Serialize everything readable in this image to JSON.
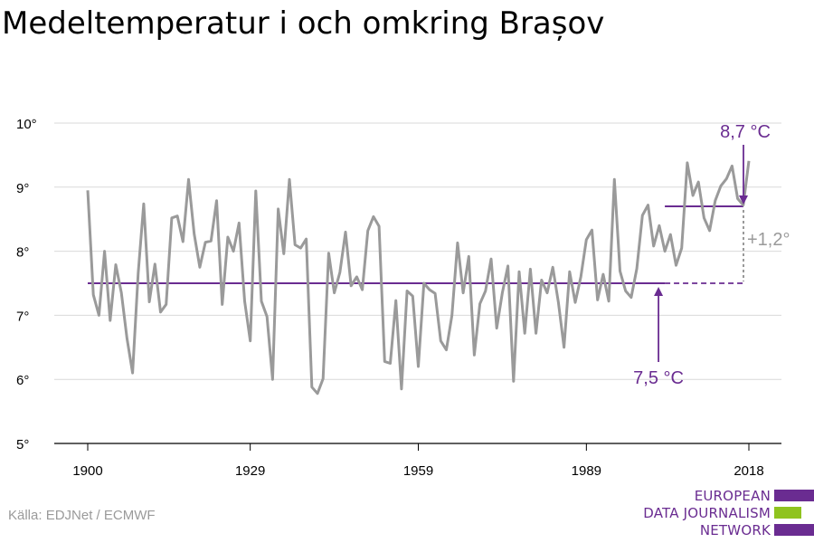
{
  "title": "Medeltemperatur i och omkring Brașov",
  "source": "Källa: EDJNet / ECMWF",
  "logo": {
    "lines": [
      "EUROPEAN",
      "DATA JOURNALISM",
      "NETWORK"
    ],
    "colors": [
      "#6a2c91",
      "#8fc31f",
      "#6a2c91"
    ]
  },
  "colors": {
    "series": "#9a9a9a",
    "accent": "#6a2c91",
    "grid": "#d9d9d9",
    "diff": "#9a9a9a"
  },
  "chart_data": {
    "type": "line",
    "title": "Medeltemperatur i och omkring Brașov",
    "xlabel": "",
    "ylabel": "",
    "xlim": [
      1900,
      2018
    ],
    "ylim": [
      5,
      10
    ],
    "x_ticks": [
      1900,
      1929,
      1959,
      1989,
      2018
    ],
    "y_ticks": [
      5,
      6,
      7,
      8,
      9,
      10
    ],
    "y_tick_labels": [
      "5°",
      "6°",
      "7°",
      "8°",
      "9°",
      "10°"
    ],
    "grid": true,
    "series": [
      {
        "x": [
          1900,
          1901,
          1902,
          1903,
          1904,
          1905,
          1906,
          1907,
          1908,
          1909,
          1910,
          1911,
          1912,
          1913,
          1914,
          1915,
          1916,
          1917,
          1918,
          1919,
          1920,
          1921,
          1922,
          1923,
          1924,
          1925,
          1926,
          1927,
          1928,
          1929,
          1930,
          1931,
          1932,
          1933,
          1934,
          1935,
          1936,
          1937,
          1938,
          1939,
          1940,
          1941,
          1942,
          1943,
          1944,
          1945,
          1946,
          1947,
          1948,
          1949,
          1950,
          1951,
          1952,
          1953,
          1954,
          1955,
          1956,
          1957,
          1958,
          1959,
          1960,
          1961,
          1962,
          1963,
          1964,
          1965,
          1966,
          1967,
          1968,
          1969,
          1970,
          1971,
          1972,
          1973,
          1974,
          1975,
          1976,
          1977,
          1978,
          1979,
          1980,
          1981,
          1982,
          1983,
          1984,
          1985,
          1986,
          1987,
          1988,
          1989,
          1990,
          1991,
          1992,
          1993,
          1994,
          1995,
          1996,
          1997,
          1998,
          1999,
          2000,
          2001,
          2002,
          2003,
          2004,
          2005,
          2006,
          2007,
          2008,
          2009,
          2010,
          2011,
          2012,
          2013,
          2014,
          2015,
          2016,
          2017,
          2018
        ],
        "values": [
          8.95,
          7.32,
          7.0,
          8.0,
          6.92,
          7.79,
          7.35,
          6.64,
          6.1,
          7.66,
          8.74,
          7.21,
          7.8,
          7.05,
          7.17,
          8.52,
          8.55,
          8.15,
          9.12,
          8.27,
          7.75,
          8.14,
          8.16,
          8.79,
          7.17,
          8.22,
          8.0,
          8.44,
          7.22,
          6.6,
          8.94,
          7.22,
          6.98,
          6.0,
          8.66,
          7.96,
          9.12,
          8.1,
          8.05,
          8.19,
          5.88,
          5.78,
          6.01,
          7.97,
          7.35,
          7.67,
          8.3,
          7.46,
          7.6,
          7.4,
          8.32,
          8.54,
          8.39,
          6.28,
          6.25,
          7.23,
          5.85,
          7.38,
          7.3,
          6.2,
          7.5,
          7.4,
          7.34,
          6.6,
          6.46,
          7.0,
          8.13,
          7.35,
          7.92,
          6.38,
          7.18,
          7.38,
          7.88,
          6.8,
          7.35,
          7.77,
          5.97,
          7.68,
          6.72,
          7.72,
          6.72,
          7.55,
          7.35,
          7.75,
          7.2,
          6.5,
          7.68,
          7.2,
          7.6,
          8.18,
          8.33,
          7.24,
          7.64,
          7.22,
          9.12,
          7.69,
          7.38,
          7.28,
          7.73,
          8.56,
          8.72,
          8.08,
          8.4,
          8.0,
          8.26,
          7.78,
          8.05,
          9.38,
          8.87,
          9.08,
          8.52,
          8.32,
          8.79,
          9.02,
          9.13,
          9.33,
          8.82,
          8.72,
          9.41
        ]
      }
    ],
    "baseline": {
      "value": 7.5,
      "label": "7,5 °C"
    },
    "recent": {
      "value": 8.7,
      "label": "8,7 °C",
      "from": 2003,
      "to": 2018
    },
    "difference_label": "+1,2°"
  }
}
